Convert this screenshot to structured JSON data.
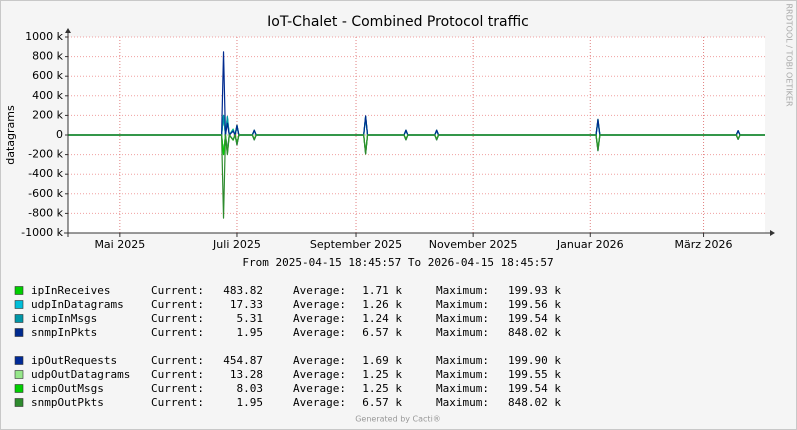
{
  "chart_data": {
    "type": "line",
    "title": "IoT-Chalet - Combined Protocol traffic",
    "y_label": "datagrams",
    "side_label": "RRDTOOL / TOBI OETIKER",
    "range_text": "From 2025-04-15 18:45:57 To 2026-04-15 18:45:57",
    "footer": "Generated by Cacti®",
    "grid": true,
    "legend_labels": {
      "current": "Current:",
      "average": "Average:",
      "maximum": "Maximum:"
    },
    "xlim": [
      "2025-04-04",
      "2026-04-02"
    ],
    "xticks": [
      {
        "value": "2025-05-01",
        "label": "Mai 2025"
      },
      {
        "value": "2025-07-01",
        "label": "Juli 2025"
      },
      {
        "value": "2025-09-01",
        "label": "September 2025"
      },
      {
        "value": "2025-11-01",
        "label": "November 2025"
      },
      {
        "value": "2026-01-01",
        "label": "Januar 2026"
      },
      {
        "value": "2026-03-01",
        "label": "März 2026"
      }
    ],
    "ylim": [
      -1000000,
      1000000
    ],
    "yticks": [
      {
        "value": 1000000,
        "label": "1000 k"
      },
      {
        "value": 800000,
        "label": "800 k"
      },
      {
        "value": 600000,
        "label": "600 k"
      },
      {
        "value": 400000,
        "label": "400 k"
      },
      {
        "value": 200000,
        "label": "200 k"
      },
      0,
      {
        "value": -200000,
        "label": "-200 k"
      },
      {
        "value": -400000,
        "label": "-400 k"
      },
      {
        "value": -600000,
        "label": "-600 k"
      },
      {
        "value": -800000,
        "label": "-800 k"
      },
      {
        "value": -1000000,
        "label": "-1000 k"
      }
    ],
    "x": [
      "2025-04-04",
      "2025-06-23",
      "2025-06-24",
      "2025-06-25",
      "2025-06-26",
      "2025-06-27",
      "2025-06-29",
      "2025-06-30",
      "2025-07-01",
      "2025-07-02",
      "2025-07-09",
      "2025-07-10",
      "2025-07-11",
      "2025-09-05",
      "2025-09-06",
      "2025-09-07",
      "2025-09-26",
      "2025-09-27",
      "2025-09-28",
      "2025-10-12",
      "2025-10-13",
      "2025-10-14",
      "2026-01-04",
      "2026-01-05",
      "2026-01-06",
      "2026-03-18",
      "2026-03-19",
      "2026-03-20",
      "2026-04-02"
    ],
    "series": [
      {
        "name": "ipInReceives",
        "color": "#00cf00",
        "current": "483.82",
        "average": "1.71 k",
        "maximum": "199.93 k",
        "values": [
          0,
          0,
          199930,
          0,
          180000,
          0,
          60000,
          0,
          100000,
          0,
          0,
          50000,
          0,
          0,
          190000,
          0,
          0,
          50000,
          0,
          0,
          50000,
          0,
          0,
          160000,
          0,
          0,
          45000,
          0,
          0
        ]
      },
      {
        "name": "udpInDatagrams",
        "color": "#00bed9",
        "current": "17.33",
        "average": "1.26 k",
        "maximum": "199.56 k",
        "values": [
          0,
          0,
          199560,
          0,
          170000,
          0,
          55000,
          0,
          90000,
          0,
          0,
          45000,
          0,
          0,
          185000,
          0,
          0,
          45000,
          0,
          0,
          45000,
          0,
          0,
          150000,
          0,
          0,
          40000,
          0,
          0
        ]
      },
      {
        "name": "icmpInMsgs",
        "color": "#0097a7",
        "current": "5.31",
        "average": "1.24 k",
        "maximum": "199.54 k",
        "values": [
          0,
          0,
          199540,
          0,
          190000,
          0,
          50000,
          0,
          80000,
          0,
          0,
          40000,
          0,
          0,
          180000,
          0,
          0,
          40000,
          0,
          0,
          40000,
          0,
          0,
          140000,
          0,
          0,
          40000,
          0,
          0
        ]
      },
      {
        "name": "snmpInPkts",
        "color": "#002a8f",
        "current": "1.95",
        "average": "6.57 k",
        "maximum": "848.02 k",
        "values": [
          0,
          0,
          848020,
          0,
          120000,
          0,
          40000,
          0,
          100000,
          0,
          0,
          50000,
          0,
          0,
          195000,
          0,
          0,
          50000,
          0,
          0,
          50000,
          0,
          0,
          160000,
          0,
          0,
          45000,
          0,
          0
        ]
      },
      {
        "name": "ipOutRequests",
        "color": "#002a97",
        "current": "454.87",
        "average": "1.69 k",
        "maximum": "199.90 k",
        "values": [
          0,
          0,
          -199900,
          0,
          -150000,
          0,
          -50000,
          0,
          -100000,
          0,
          0,
          -50000,
          0,
          0,
          -190000,
          0,
          0,
          -50000,
          0,
          0,
          -50000,
          0,
          0,
          -160000,
          0,
          0,
          -45000,
          0,
          0
        ]
      },
      {
        "name": "udpOutDatagrams",
        "color": "#96e78a",
        "current": "13.28",
        "average": "1.25 k",
        "maximum": "199.55 k",
        "values": [
          0,
          0,
          -199550,
          0,
          -170000,
          0,
          -55000,
          0,
          -90000,
          0,
          0,
          -45000,
          0,
          0,
          -185000,
          0,
          0,
          -45000,
          0,
          0,
          -45000,
          0,
          0,
          -150000,
          0,
          0,
          -40000,
          0,
          0
        ]
      },
      {
        "name": "icmpOutMsgs",
        "color": "#00cf00",
        "current": "8.03",
        "average": "1.25 k",
        "maximum": "199.54 k",
        "values": [
          0,
          0,
          -199540,
          0,
          -190000,
          0,
          -50000,
          0,
          -80000,
          0,
          0,
          -40000,
          0,
          0,
          -180000,
          0,
          0,
          -40000,
          0,
          0,
          -40000,
          0,
          0,
          -140000,
          0,
          0,
          -40000,
          0,
          0
        ]
      },
      {
        "name": "snmpOutPkts",
        "color": "#2e8b2e",
        "current": "1.95",
        "average": "6.57 k",
        "maximum": "848.02 k",
        "values": [
          0,
          0,
          -848020,
          0,
          -200000,
          0,
          -50000,
          0,
          -100000,
          0,
          0,
          -50000,
          0,
          0,
          -195000,
          0,
          0,
          -50000,
          0,
          0,
          -50000,
          0,
          0,
          -160000,
          0,
          0,
          -45000,
          0,
          0
        ]
      }
    ]
  }
}
